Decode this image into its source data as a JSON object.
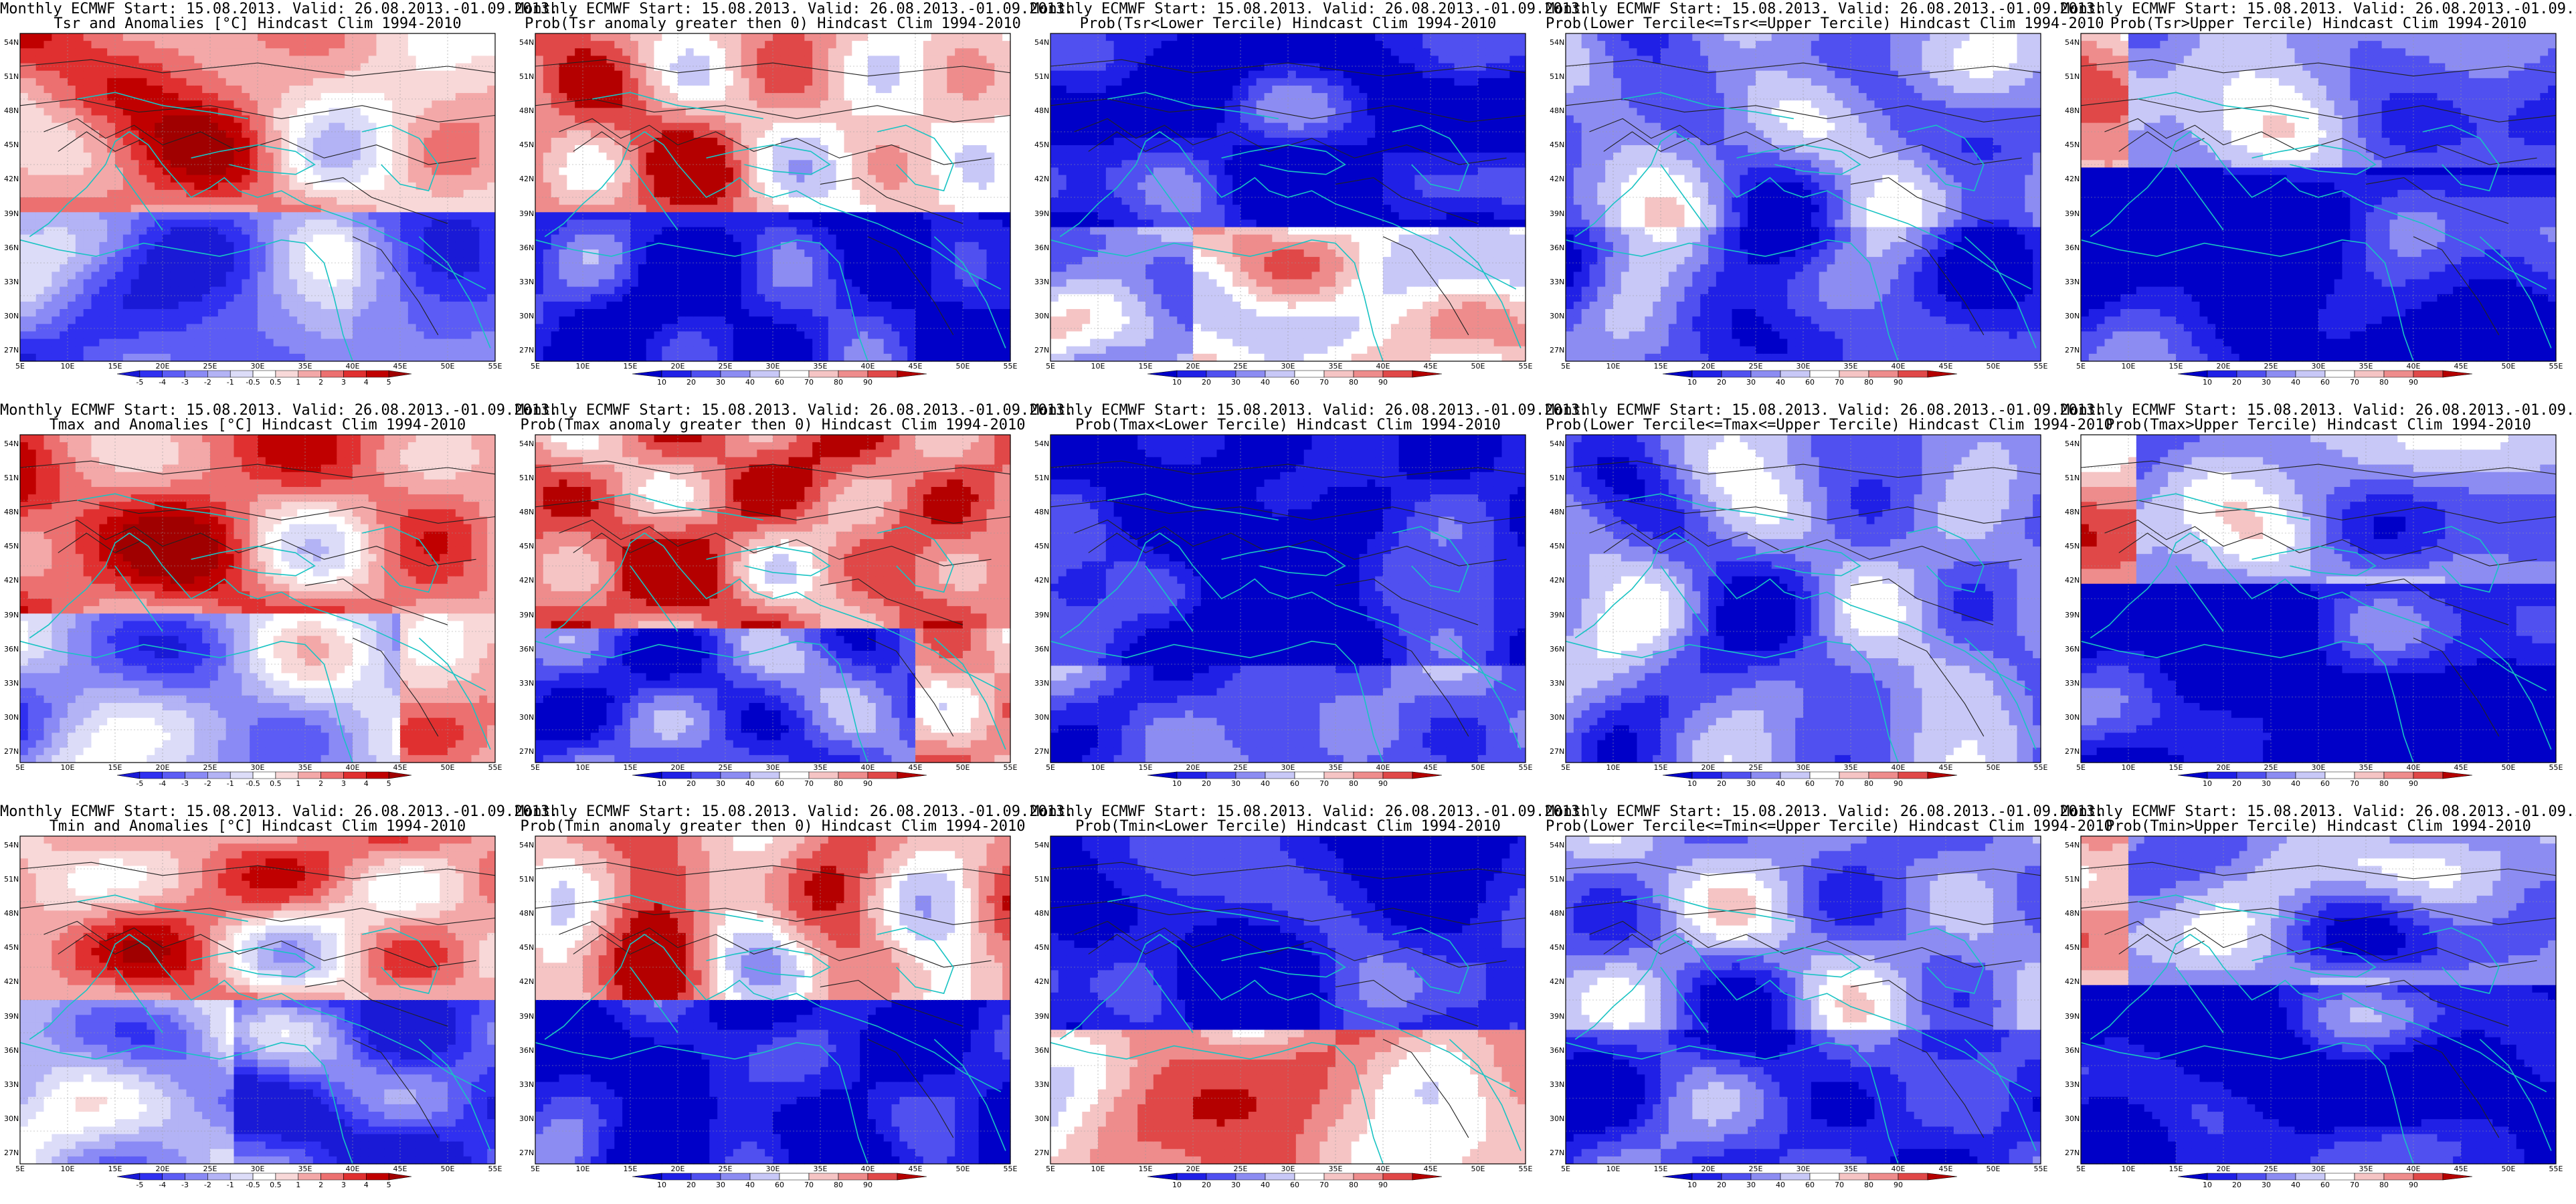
{
  "header_prefix": "Monthly ECMWF Start: 15.08.2013. Valid: 26.08.2013.-01.09.2013.",
  "lat_labels": [
    "54N",
    "51N",
    "48N",
    "45N",
    "42N",
    "39N",
    "36N",
    "33N",
    "30N",
    "27N"
  ],
  "lon_labels": [
    "5E",
    "10E",
    "15E",
    "20E",
    "25E",
    "30E",
    "35E",
    "40E",
    "45E",
    "50E",
    "55E"
  ],
  "anomaly_colorbar": {
    "levels": [
      "-5",
      "-4",
      "-3",
      "-2",
      "-1",
      "-0.5",
      "0.5",
      "1",
      "2",
      "3",
      "4",
      "5"
    ],
    "colors": [
      "#1a1ad6",
      "#3030f0",
      "#5c5cf5",
      "#8a8af5",
      "#b3b3f5",
      "#dcdcf8",
      "#ffffff",
      "#f8d8d8",
      "#f3a8a8",
      "#ec7070",
      "#e03030",
      "#c00000",
      "#a00000"
    ]
  },
  "prob_colorbar": {
    "levels": [
      "10",
      "20",
      "30",
      "40",
      "60",
      "70",
      "80",
      "90"
    ],
    "colors": [
      "#0000c8",
      "#2020e6",
      "#5050f0",
      "#8c8cf2",
      "#c8c8f7",
      "#ffffff",
      "#f5c4c4",
      "#ee8c8c",
      "#e04848",
      "#b40000"
    ]
  },
  "panels": [
    {
      "title": "Tsr and Anomalies [°C] Hindcast Clim 1994-2010",
      "kind": "anomaly",
      "field": "tsr_anom"
    },
    {
      "title": "Prob(Tsr anomaly greater then 0) Hindcast Clim 1994-2010",
      "kind": "prob",
      "field": "tsr_pos"
    },
    {
      "title": "Prob(Tsr<Lower Tercile) Hindcast Clim 1994-2010",
      "kind": "prob",
      "field": "tsr_low"
    },
    {
      "title": "Prob(Lower Tercile<=Tsr<=Upper Tercile) Hindcast Clim 1994-2010",
      "kind": "prob",
      "field": "tsr_mid"
    },
    {
      "title": "Prob(Tsr>Upper Tercile) Hindcast Clim 1994-2010",
      "kind": "prob",
      "field": "tsr_up"
    },
    {
      "title": "Tmax and Anomalies [°C] Hindcast Clim 1994-2010",
      "kind": "anomaly",
      "field": "tmax_anom"
    },
    {
      "title": "Prob(Tmax anomaly greater then 0) Hindcast Clim 1994-2010",
      "kind": "prob",
      "field": "tmax_pos"
    },
    {
      "title": "Prob(Tmax<Lower Tercile) Hindcast Clim 1994-2010",
      "kind": "prob",
      "field": "tmax_low"
    },
    {
      "title": "Prob(Lower Tercile<=Tmax<=Upper Tercile) Hindcast Clim 1994-2010",
      "kind": "prob",
      "field": "tmax_mid"
    },
    {
      "title": "Prob(Tmax>Upper Tercile) Hindcast Clim 1994-2010",
      "kind": "prob",
      "field": "tmax_up"
    },
    {
      "title": "Tmin and Anomalies [°C] Hindcast Clim 1994-2010",
      "kind": "anomaly",
      "field": "tmin_anom"
    },
    {
      "title": "Prob(Tmin anomaly greater then 0) Hindcast Clim 1994-2010",
      "kind": "prob",
      "field": "tmin_pos"
    },
    {
      "title": "Prob(Tmin<Lower Tercile) Hindcast Clim 1994-2010",
      "kind": "prob",
      "field": "tmin_low"
    },
    {
      "title": "Prob(Lower Tercile<=Tmin<=Upper Tercile) Hindcast Clim 1994-2010",
      "kind": "prob",
      "field": "tmin_mid"
    },
    {
      "title": "Prob(Tmin>Upper Tercile) Hindcast Clim 1994-2010",
      "kind": "prob",
      "field": "tmin_up"
    }
  ]
}
